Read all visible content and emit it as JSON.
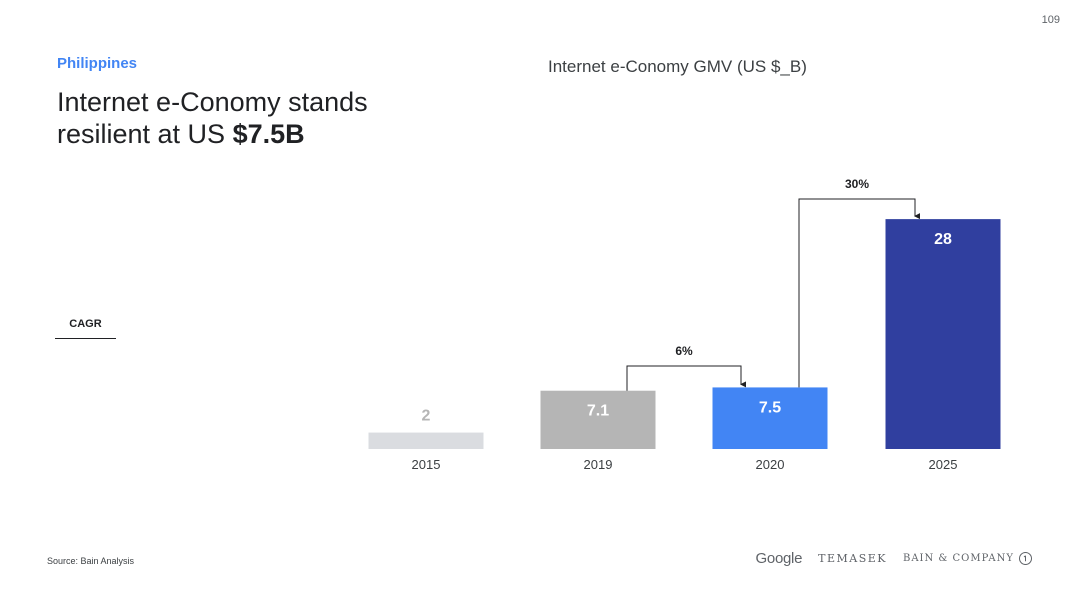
{
  "page_number": "109",
  "country": "Philippines",
  "headline": {
    "prefix": "Internet e-Conomy stands resilient at US ",
    "emphasis": "$7.5B"
  },
  "cagr_label": "CAGR",
  "source": "Source: Bain Analysis",
  "logos": {
    "google": "Google",
    "temasek": "TEMASEK",
    "bain": "BAIN & COMPANY",
    "bain_mark": "①"
  },
  "chart_data": {
    "type": "bar",
    "title": "Internet e-Conomy GMV (US $_B)",
    "categories": [
      "2015",
      "2019",
      "2020",
      "2025"
    ],
    "values": [
      2,
      7.1,
      7.5,
      28
    ],
    "value_labels": [
      "2",
      "7.1",
      "7.5",
      "28"
    ],
    "bar_colors": [
      "#dadce0",
      "#b5b5b5",
      "#4285f4",
      "#303f9f"
    ],
    "label_colors": [
      "#b5b5b5",
      "#ffffff",
      "#ffffff",
      "#ffffff"
    ],
    "annotations": [
      {
        "from": "2019",
        "to": "2020",
        "label": "6%"
      },
      {
        "from": "2020",
        "to": "2025",
        "label": "30%"
      }
    ]
  }
}
